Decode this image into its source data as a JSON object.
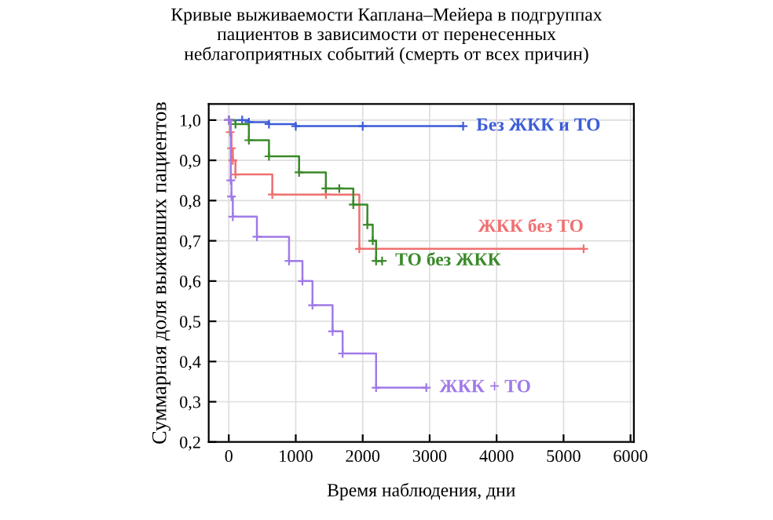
{
  "chart_data": {
    "type": "step",
    "title": "Кривые выживаемости Каплана–Мейера в подгруппах\nпациентов в зависимости от перенесенных\nнеблагоприятных событий (смерть от всех причин)",
    "xlabel": "Время наблюдения, дни",
    "ylabel": "Суммарная доля выживших пациентов",
    "xlim": [
      -300,
      6050
    ],
    "ylim": [
      0.2,
      1.04
    ],
    "xticks": [
      0,
      1000,
      2000,
      3000,
      4000,
      5000,
      6000
    ],
    "yticks": [
      {
        "value": 0.2,
        "label": "0,2"
      },
      {
        "value": 0.3,
        "label": "0,3"
      },
      {
        "value": 0.4,
        "label": "0,4"
      },
      {
        "value": 0.5,
        "label": "0,5"
      },
      {
        "value": 0.6,
        "label": "0,6"
      },
      {
        "value": 0.7,
        "label": "0,7"
      },
      {
        "value": 0.8,
        "label": "0,8"
      },
      {
        "value": 0.9,
        "label": "0,9"
      },
      {
        "value": 1.0,
        "label": "1,0"
      }
    ],
    "grid": true,
    "legend": false,
    "marker": "cross",
    "series": [
      {
        "name": "Без ЖКК и ТО",
        "color": "#3c5cd8",
        "x": [
          0,
          200,
          300,
          600,
          1000,
          2000,
          3500
        ],
        "values": [
          1.0,
          1.0,
          0.995,
          0.99,
          0.985,
          0.985,
          0.985
        ]
      },
      {
        "name": "ЖКК без ТО",
        "color": "#f07070",
        "x": [
          0,
          20,
          40,
          60,
          100,
          650,
          1450,
          1950,
          5300
        ],
        "values": [
          1.0,
          0.97,
          0.93,
          0.9,
          0.865,
          0.815,
          0.815,
          0.68,
          0.68
        ]
      },
      {
        "name": "ТО без ЖКК",
        "color": "#3a8a2a",
        "x": [
          0,
          100,
          300,
          600,
          1050,
          1450,
          1650,
          1860,
          2070,
          2150,
          2200,
          2290
        ],
        "values": [
          1.0,
          0.99,
          0.95,
          0.91,
          0.87,
          0.83,
          0.83,
          0.79,
          0.74,
          0.7,
          0.65,
          0.65
        ]
      },
      {
        "name": "ЖКК + ТО",
        "color": "#a07ae8",
        "x": [
          0,
          30,
          40,
          60,
          420,
          900,
          1100,
          1250,
          1550,
          1700,
          2200,
          2950
        ],
        "values": [
          1.0,
          0.85,
          0.81,
          0.76,
          0.71,
          0.65,
          0.6,
          0.54,
          0.475,
          0.42,
          0.335,
          0.335
        ]
      }
    ]
  }
}
